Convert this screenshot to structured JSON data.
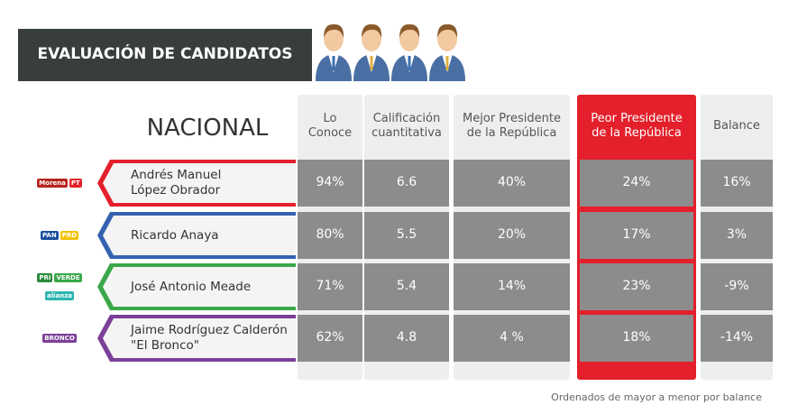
{
  "header": {
    "title": "EVALUACIÓN DE CANDIDATOS"
  },
  "table": {
    "title": "NACIONAL",
    "columns": [
      "Lo\nConoce",
      "Calificación\ncuantitativa",
      "Mejor Presidente\nde la República",
      "Peor Presidente\nde la República",
      "Balance"
    ],
    "rows": [
      {
        "parties": [
          "Morena",
          "PT"
        ],
        "name": "Andrés Manuel\nLópez Obrador",
        "cells": [
          "94%",
          "6.6",
          "40%",
          "24%",
          "16%"
        ]
      },
      {
        "parties": [
          "PAN",
          "PRD"
        ],
        "name": "Ricardo Anaya",
        "cells": [
          "80%",
          "5.5",
          "20%",
          "17%",
          "3%"
        ]
      },
      {
        "parties": [
          "PRI",
          "VERDE",
          "alianza"
        ],
        "name": "José Antonio Meade",
        "cells": [
          "71%",
          "5.4",
          "14%",
          "23%",
          "-9%"
        ]
      },
      {
        "parties": [
          "BRONCO"
        ],
        "name": "Jaime Rodríguez Calderón\n\"El Bronco\"",
        "cells": [
          "62%",
          "4.8",
          "4 %",
          "18%",
          "-14%"
        ]
      }
    ]
  },
  "footer": {
    "note": "Ordenados de mayor a menor por balance"
  }
}
